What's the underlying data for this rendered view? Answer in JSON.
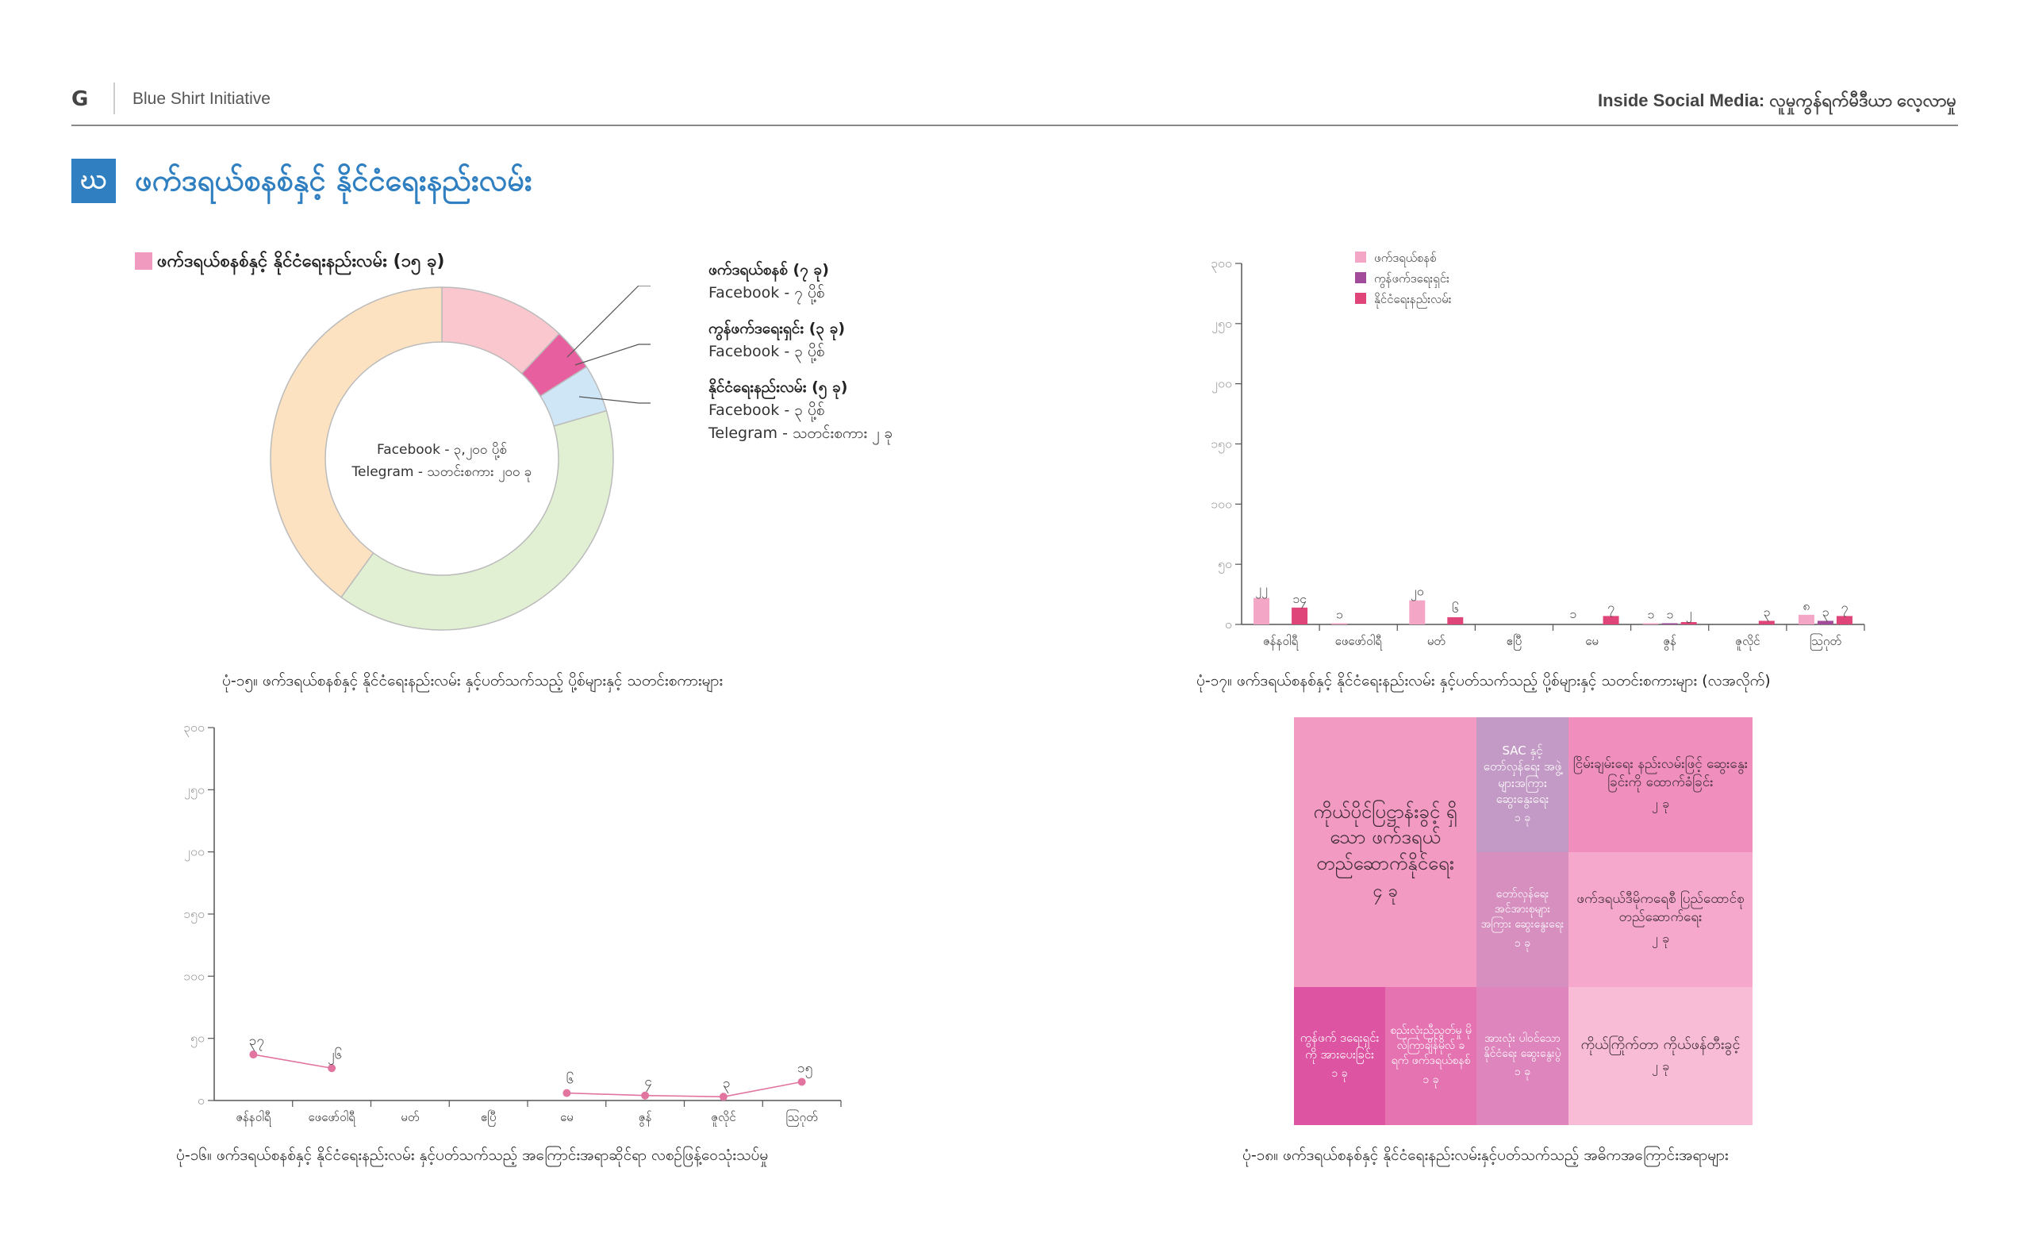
{
  "header": {
    "logo": "G",
    "org": "Blue Shirt Initiative",
    "publication": "Inside Social Media: လူမှုကွန်ရက်မီဒီယာ လေ့လာမှု"
  },
  "section": {
    "badge": "ဃ",
    "title": "ဖက်ဒရယ်စနစ်နှင့် နိုင်ငံရေးနည်းလမ်း"
  },
  "donut": {
    "legend_label": "ဖက်ဒရယ်စနစ်နှင့် နိုင်ငံရေးနည်းလမ်း (၁၅ ခု)",
    "center_line1": "Facebook - ၃,၂၀၀ ပို့စ်",
    "center_line2": "Telegram - သတင်းစကား ၂၀၀ ခု",
    "callouts": [
      {
        "title": "ဖက်ဒရယ်စနစ် (၇ ခု)",
        "line1": "Facebook  -    ၇ ပို့စ်",
        "line2": ""
      },
      {
        "title": "ကွန်ဖက်ဒရေးရှင်း (၃ ခု)",
        "line1": "Facebook  -    ၃ ပို့စ်",
        "line2": ""
      },
      {
        "title": "နိုင်ငံရေးနည်းလမ်း (၅ ခု)",
        "line1": "Facebook  -    ၃ ပို့စ်",
        "line2": "Telegram   -    သတင်းစကား ၂ ခု"
      }
    ],
    "slices": [
      {
        "value": 0.12,
        "color": "#fbc7cf"
      },
      {
        "value": 0.04,
        "color": "#e85fa0"
      },
      {
        "value": 0.045,
        "color": "#cfe6f6"
      },
      {
        "value": 0.395,
        "color": "#e1efd2"
      },
      {
        "value": 0.4,
        "color": "#fde2c1"
      }
    ],
    "caption": "ပုံ-၁၅။ ဖက်ဒရယ်စနစ်နှင့် နိုင်ငံရေးနည်းလမ်း နှင့်ပတ်သက်သည့် ပို့စ်များနှင့် သတင်းစကားများ"
  },
  "chart_data": [
    {
      "type": "bar",
      "ylim": [
        0,
        300
      ],
      "yticks": [
        "၀",
        "၅၀",
        "၁၀၀",
        "၁၅၀",
        "၂၀၀",
        "၂၅၀",
        "၃၀၀"
      ],
      "categories": [
        "ဇန်နဝါရီ",
        "ဖေဖော်ဝါရီ",
        "မတ်",
        "ဧပြီ",
        "မေ",
        "ဇွန်",
        "ဇူလိုင်",
        "ဩဂုတ်"
      ],
      "series": [
        {
          "name": "ဖက်ဒရယ်စနစ်",
          "color": "#f4a6c6",
          "values": [
            22,
            1,
            20,
            0,
            0,
            1,
            0,
            8
          ],
          "labels": [
            "၂၂",
            "၁",
            "၂၀",
            "",
            "",
            "၁",
            "",
            "၈"
          ]
        },
        {
          "name": "ကွန်ဖက်ဒရေးရှင်း",
          "color": "#a24b9a",
          "values": [
            0,
            0,
            0,
            0,
            0,
            1,
            0,
            3
          ],
          "labels": [
            "",
            "",
            "",
            "",
            "",
            "၁",
            "",
            "၃"
          ]
        },
        {
          "name": "နိုင်ငံရေးနည်းလမ်း",
          "color": "#e0457a",
          "values": [
            14,
            0,
            6,
            0,
            7,
            2,
            3,
            7
          ],
          "labels": [
            "၁၄",
            "",
            "၆",
            "",
            "၇",
            "၂",
            "၃",
            "၇"
          ]
        }
      ],
      "mentions": [
        "",
        "",
        "",
        "",
        "၁",
        "",
        "",
        ""
      ],
      "caption": "ပုံ-၁၇။ ဖက်ဒရယ်စနစ်နှင့် နိုင်ငံရေးနည်းလမ်း နှင့်ပတ်သက်သည့် ပို့စ်များနှင့် သတင်းစကားများ (လအလိုက်)"
    },
    {
      "type": "line",
      "ylim": [
        0,
        300
      ],
      "yticks": [
        "၀",
        "၅၀",
        "၁၀၀",
        "၁၅၀",
        "၂၀၀",
        "၂၅၀",
        "၃၀၀"
      ],
      "categories": [
        "ဇန်နဝါရီ",
        "ဖေဖော်ဝါရီ",
        "မတ်",
        "ဧပြီ",
        "မေ",
        "ဇွန်",
        "ဇူလိုင်",
        "ဩဂုတ်"
      ],
      "series": [
        {
          "color": "#e2759f",
          "values": [
            37,
            26,
            null,
            null,
            6,
            4,
            3,
            15
          ],
          "labels": [
            "၃၇",
            "၂၆",
            "",
            "",
            "၆",
            "၄",
            "၃",
            "၁၅"
          ]
        }
      ],
      "caption": "ပုံ-၁၆။ ဖက်ဒရယ်စနစ်နှင့် နိုင်ငံရေးနည်းလမ်း နှင့်ပတ်သက်သည့် အကြောင်းအရာဆိုင်ရာ လစဉ်ဖြန့်ဝေသုံးသပ်မှု"
    }
  ],
  "treemap": {
    "caption": "ပုံ-၁၈။ ဖက်ဒရယ်စနစ်နှင့် နိုင်ငံရေးနည်းလမ်းနှင့်ပတ်သက်သည့် အဓိကအကြောင်းအရာများ",
    "cells": [
      {
        "title": "ကိုယ်ပိုင်ပြဋ္ဌာန်းခွင့် ရှိသော ဖက်ဒရယ် တည်ဆောက်နိုင်ရေး",
        "count": "၄ ခု",
        "color": "#f29ac2"
      },
      {
        "title": "SAC နှင့် တော်လှန်ရေး အဖွဲ့များအကြား ဆွေးနွေးရေး",
        "count": "၁ ခု",
        "color": "#c39ac5"
      },
      {
        "title": "ငြိမ်းချမ်းရေး နည်းလမ်းဖြင့် ဆွေးနွေးခြင်းကို ထောက်ခံခြင်း",
        "count": "၂ ခု",
        "color": "#f08fbe"
      },
      {
        "title": "တော်လှန်ရေး အင်အားစုများ အကြား ဆွေးနွေးရေး",
        "count": "၁ ခု",
        "color": "#d68fbf"
      },
      {
        "title": "ဖက်ဒရယ်ဒီမိုကရေစီ ပြည်ထောင်စု တည်ဆောက်ရေး",
        "count": "၂ ခု",
        "color": "#f5a8cc"
      },
      {
        "title": "ကွန်ဖက် ဒရေးရှင်းကို အားပေးခြင်း",
        "count": "၁ ခု",
        "color": "#dd55a2"
      },
      {
        "title": "စည်းလုံးညီညွတ်မှု မိုလ်ကြာချိန်မိုလ် ခရက် ဖက်ဒရယ်စနစ်",
        "count": "၁ ခု",
        "color": "#e573b2"
      },
      {
        "title": "အားလုံး ပါဝင်သော နိုင်ငံရေး ဆွေးနွေးပွဲ",
        "count": "၁ ခု",
        "color": "#dd85bc"
      },
      {
        "title": "ကိုယ်ကြိုက်တာ ကိုယ်ဖန်တီးခွင့်",
        "count": "၂ ခု",
        "color": "#f8bcd7"
      }
    ]
  }
}
